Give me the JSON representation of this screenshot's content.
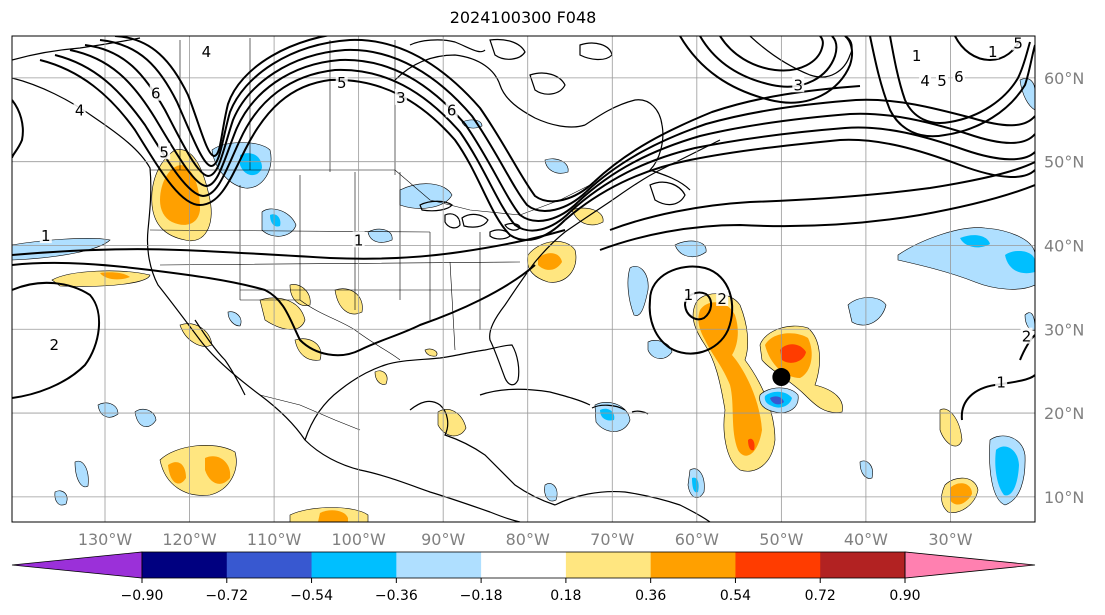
{
  "title": "2024100300 F048",
  "map": {
    "lon_range": [
      -141,
      -20
    ],
    "lat_range": [
      7,
      65
    ],
    "lon_ticks": [
      "130°W",
      "120°W",
      "110°W",
      "100°W",
      "90°W",
      "80°W",
      "70°W",
      "60°W",
      "50°W",
      "40°W",
      "30°W"
    ],
    "lon_tick_values": [
      -130,
      -120,
      -110,
      -100,
      -90,
      -80,
      -70,
      -60,
      -50,
      -40,
      -30
    ],
    "lat_ticks": [
      "60°N",
      "50°N",
      "40°N",
      "30°N",
      "20°N",
      "10°N"
    ],
    "lat_tick_values": [
      60,
      50,
      40,
      30,
      20,
      10
    ],
    "grid": true,
    "storm_marker": {
      "lon": -50,
      "lat": 24.3
    }
  },
  "contour_labels": [
    {
      "text": "4",
      "lon": -118,
      "lat": 63
    },
    {
      "text": "5",
      "lon": -102,
      "lat": 59.3
    },
    {
      "text": "6",
      "lon": -89,
      "lat": 56
    },
    {
      "text": "6",
      "lon": -124,
      "lat": 58
    },
    {
      "text": "3",
      "lon": -95,
      "lat": 57.5
    },
    {
      "text": "4",
      "lon": -133,
      "lat": 56
    },
    {
      "text": "5",
      "lon": -123,
      "lat": 51
    },
    {
      "text": "1",
      "lon": -137,
      "lat": 41
    },
    {
      "text": "1",
      "lon": -100,
      "lat": 40.5
    },
    {
      "text": "2",
      "lon": -136,
      "lat": 28
    },
    {
      "text": "1",
      "lon": -61,
      "lat": 34
    },
    {
      "text": "2",
      "lon": -57,
      "lat": 33.5
    },
    {
      "text": "3",
      "lon": -48,
      "lat": 59
    },
    {
      "text": "1",
      "lon": -34,
      "lat": 62.5
    },
    {
      "text": "4",
      "lon": -33,
      "lat": 59.5
    },
    {
      "text": "5",
      "lon": -31,
      "lat": 59.5
    },
    {
      "text": "6",
      "lon": -29,
      "lat": 60
    },
    {
      "text": "1",
      "lon": -25,
      "lat": 63
    },
    {
      "text": "5",
      "lon": -22,
      "lat": 64
    },
    {
      "text": "1",
      "lon": -24,
      "lat": 23.5
    },
    {
      "text": "2",
      "lon": -21,
      "lat": 29
    }
  ],
  "colorbar": {
    "colors": [
      "#9b30d9",
      "#000080",
      "#3858d0",
      "#00bfff",
      "#afdfff",
      "#ffffff",
      "#ffe680",
      "#ffa000",
      "#ff3c00",
      "#b22222",
      "#ff80b0"
    ],
    "tick_labels": [
      "−0.90",
      "−0.72",
      "−0.54",
      "−0.36",
      "−0.18",
      "0.18",
      "0.36",
      "0.54",
      "0.72",
      "0.90"
    ]
  }
}
